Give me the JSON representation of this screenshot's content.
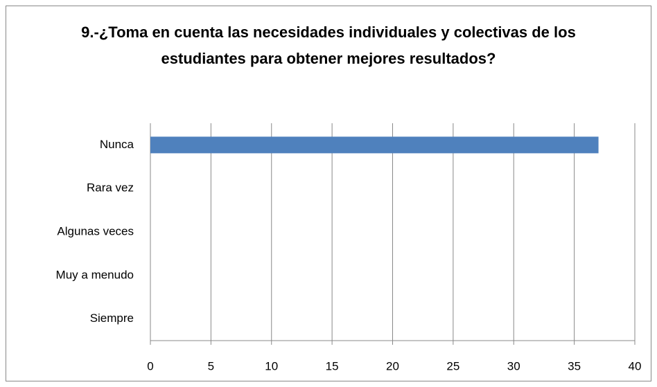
{
  "chart_data": {
    "type": "barh",
    "title": "9.-¿Toma en cuenta las necesidades individuales y colectivas de los estudiantes para obtener mejores resultados?",
    "categories": [
      "Nunca",
      "Rara vez",
      "Algunas veces",
      "Muy a menudo",
      "Siempre"
    ],
    "values": [
      37,
      0,
      0,
      0,
      0
    ],
    "color": "#4f81bd",
    "xlim": [
      0,
      40
    ],
    "xticks": [
      0,
      5,
      10,
      15,
      20,
      25,
      30,
      35,
      40
    ],
    "grid": true
  }
}
